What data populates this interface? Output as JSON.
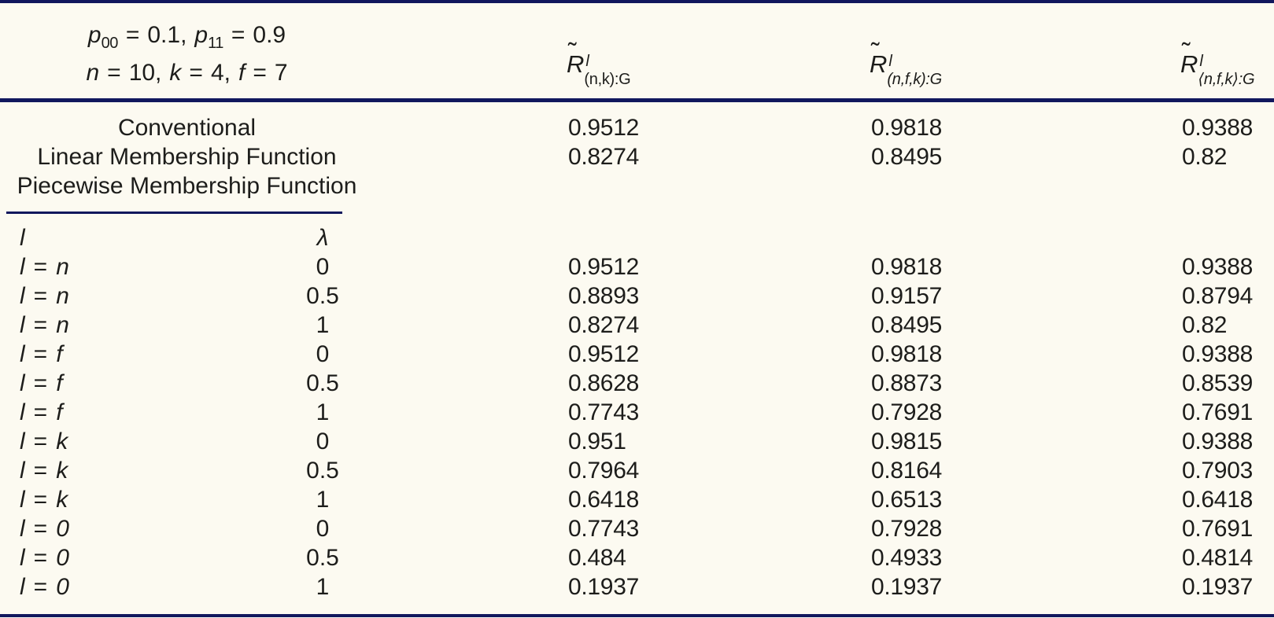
{
  "table": {
    "colors": {
      "rule": "#11175d",
      "background": "#fcfaf1",
      "text": "#1d1d1b"
    },
    "param_cell": {
      "line1": {
        "v1": "p",
        "s1": "00",
        "eq1": "=",
        "r1": "0.1,",
        "v2": "p",
        "s2": "11",
        "eq2": "=",
        "r2": "0.9"
      },
      "line2": {
        "v1": "n",
        "eq1": "=",
        "r1": "10,",
        "v2": "k",
        "eq2": "=",
        "r2": "4,",
        "v3": "f",
        "eq3": "=",
        "r3": "7"
      }
    },
    "columns": [
      {
        "tilde": "˜",
        "base": "R",
        "sup": "l",
        "sub": "(n,k):G"
      },
      {
        "tilde": "˜",
        "base": "R",
        "sup": "l",
        "sub": "(n,f,k):G"
      },
      {
        "tilde": "˜",
        "base": "R",
        "sup": "l",
        "sub": "⟨n,f,k⟩:G"
      }
    ],
    "method_rows": [
      {
        "label": "Conventional",
        "c1": "0.9512",
        "c2": "0.9818",
        "c3": "0.9388"
      },
      {
        "label": "Linear Membership Function",
        "c1": "0.8274",
        "c2": "0.8495",
        "c3": "0.82"
      },
      {
        "label": "Piecewise Membership Function",
        "c1": "",
        "c2": "",
        "c3": ""
      }
    ],
    "sub_header": {
      "l": "l",
      "lambda": "λ"
    },
    "lambda_rows": [
      {
        "lhs": "l",
        "eq": "=",
        "rhs": "n",
        "lambda": "0",
        "c1": "0.9512",
        "c2": "0.9818",
        "c3": "0.9388"
      },
      {
        "lhs": "l",
        "eq": "=",
        "rhs": "n",
        "lambda": "0.5",
        "c1": "0.8893",
        "c2": "0.9157",
        "c3": "0.8794"
      },
      {
        "lhs": "l",
        "eq": "=",
        "rhs": "n",
        "lambda": "1",
        "c1": "0.8274",
        "c2": "0.8495",
        "c3": "0.82"
      },
      {
        "lhs": "l",
        "eq": "=",
        "rhs": "f",
        "lambda": "0",
        "c1": "0.9512",
        "c2": "0.9818",
        "c3": "0.9388"
      },
      {
        "lhs": "l",
        "eq": "=",
        "rhs": "f",
        "lambda": "0.5",
        "c1": "0.8628",
        "c2": "0.8873",
        "c3": "0.8539"
      },
      {
        "lhs": "l",
        "eq": "=",
        "rhs": "f",
        "lambda": "1",
        "c1": "0.7743",
        "c2": "0.7928",
        "c3": "0.7691"
      },
      {
        "lhs": "l",
        "eq": "=",
        "rhs": "k",
        "lambda": "0",
        "c1": "0.951",
        "c2": "0.9815",
        "c3": "0.9388"
      },
      {
        "lhs": "l",
        "eq": "=",
        "rhs": "k",
        "lambda": "0.5",
        "c1": "0.7964",
        "c2": "0.8164",
        "c3": "0.7903"
      },
      {
        "lhs": "l",
        "eq": "=",
        "rhs": "k",
        "lambda": "1",
        "c1": "0.6418",
        "c2": "0.6513",
        "c3": "0.6418"
      },
      {
        "lhs": "l",
        "eq": "=",
        "rhs": "0",
        "lambda": "0",
        "c1": "0.7743",
        "c2": "0.7928",
        "c3": "0.7691"
      },
      {
        "lhs": "l",
        "eq": "=",
        "rhs": "0",
        "lambda": "0.5",
        "c1": "0.484",
        "c2": "0.4933",
        "c3": "0.4814"
      },
      {
        "lhs": "l",
        "eq": "=",
        "rhs": "0",
        "lambda": "1",
        "c1": "0.1937",
        "c2": "0.1937",
        "c3": "0.1937"
      }
    ]
  }
}
